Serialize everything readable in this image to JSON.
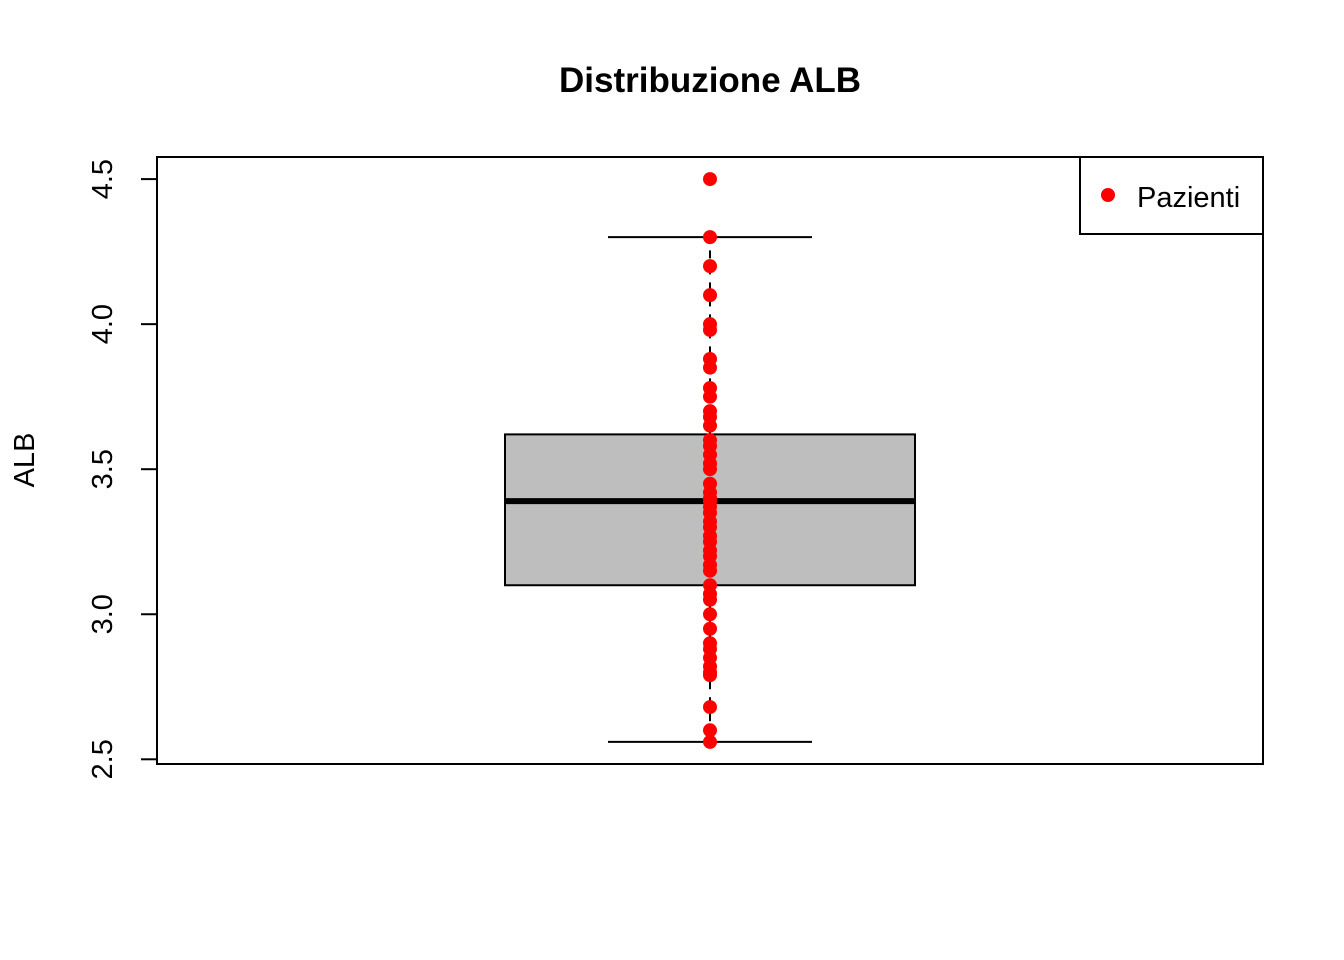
{
  "chart_data": {
    "type": "box",
    "title": "Distribuzione ALB",
    "ylabel": "ALB",
    "xlabel": "",
    "ylim": [
      2.5,
      4.5
    ],
    "yticks": [
      "2.5",
      "3.0",
      "3.5",
      "4.0",
      "4.5"
    ],
    "box": {
      "min": 2.56,
      "q1": 3.1,
      "median": 3.39,
      "q3": 3.62,
      "max": 4.3
    },
    "series": [
      {
        "name": "Pazienti",
        "color": "#ff0000",
        "values": [
          2.56,
          2.6,
          2.68,
          2.79,
          2.8,
          2.82,
          2.85,
          2.88,
          2.9,
          2.95,
          3.0,
          3.05,
          3.07,
          3.1,
          3.15,
          3.17,
          3.2,
          3.22,
          3.25,
          3.27,
          3.3,
          3.32,
          3.35,
          3.37,
          3.39,
          3.4,
          3.42,
          3.45,
          3.5,
          3.52,
          3.55,
          3.58,
          3.6,
          3.65,
          3.68,
          3.7,
          3.75,
          3.78,
          3.85,
          3.88,
          3.98,
          4.0,
          4.1,
          4.2,
          4.3,
          4.5
        ]
      }
    ],
    "legend": {
      "position": "top-right",
      "label": "Pazienti"
    },
    "colors": {
      "box_fill": "#bebebe",
      "points": "#ff0000"
    }
  }
}
